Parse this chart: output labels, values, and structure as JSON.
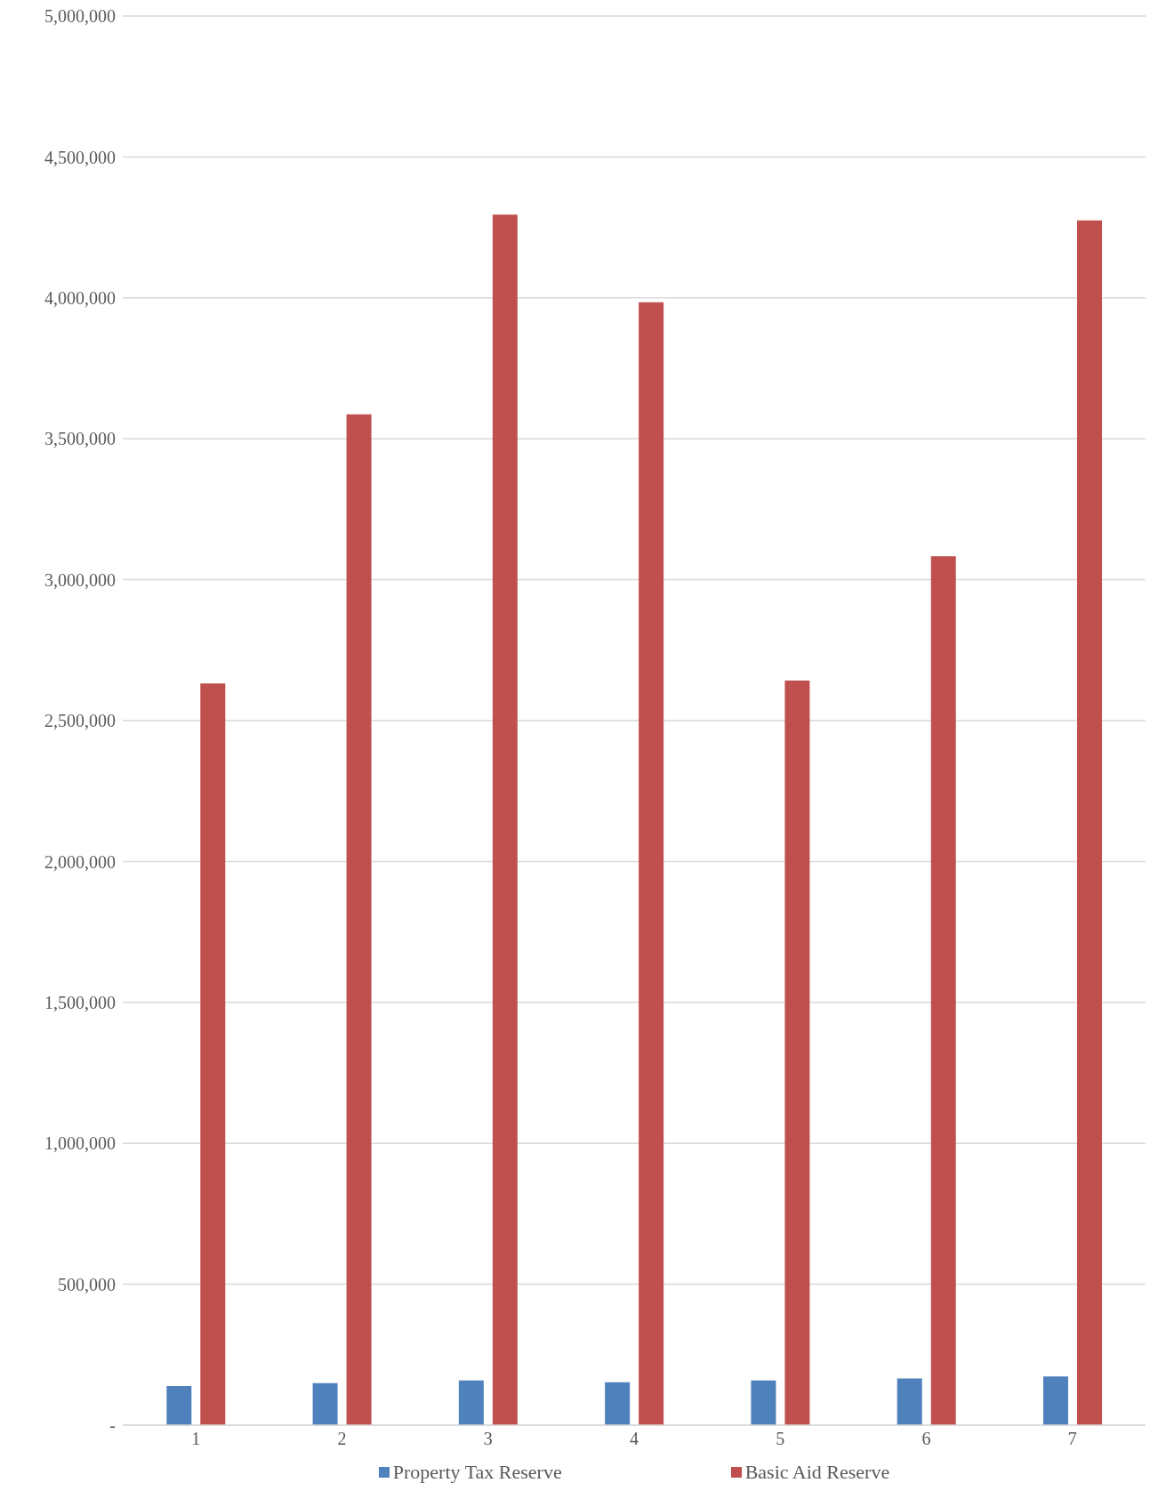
{
  "chart_data": {
    "type": "bar",
    "categories": [
      "1",
      "2",
      "3",
      "4",
      "5",
      "6",
      "7"
    ],
    "series": [
      {
        "name": "Property Tax Reserve",
        "color": "#4f81bd",
        "values": [
          139000,
          149000,
          159000,
          152000,
          159000,
          166000,
          173000
        ]
      },
      {
        "name": "Basic Aid Reserve",
        "color": "#c0504d",
        "values": [
          2632000,
          3587000,
          4295000,
          3984000,
          2642000,
          3083000,
          4275000
        ]
      }
    ],
    "ylim": [
      0,
      5000000
    ],
    "yticks": [
      {
        "value": 0,
        "label": "-"
      },
      {
        "value": 500000,
        "label": "500,000"
      },
      {
        "value": 1000000,
        "label": "1,000,000"
      },
      {
        "value": 1500000,
        "label": "1,500,000"
      },
      {
        "value": 2000000,
        "label": "2,000,000"
      },
      {
        "value": 2500000,
        "label": "2,500,000"
      },
      {
        "value": 3000000,
        "label": "3,000,000"
      },
      {
        "value": 3500000,
        "label": "3,500,000"
      },
      {
        "value": 4000000,
        "label": "4,000,000"
      },
      {
        "value": 4500000,
        "label": "4,500,000"
      },
      {
        "value": 5000000,
        "label": "5,000,000"
      }
    ],
    "grid": "y",
    "legend": "bottom"
  }
}
